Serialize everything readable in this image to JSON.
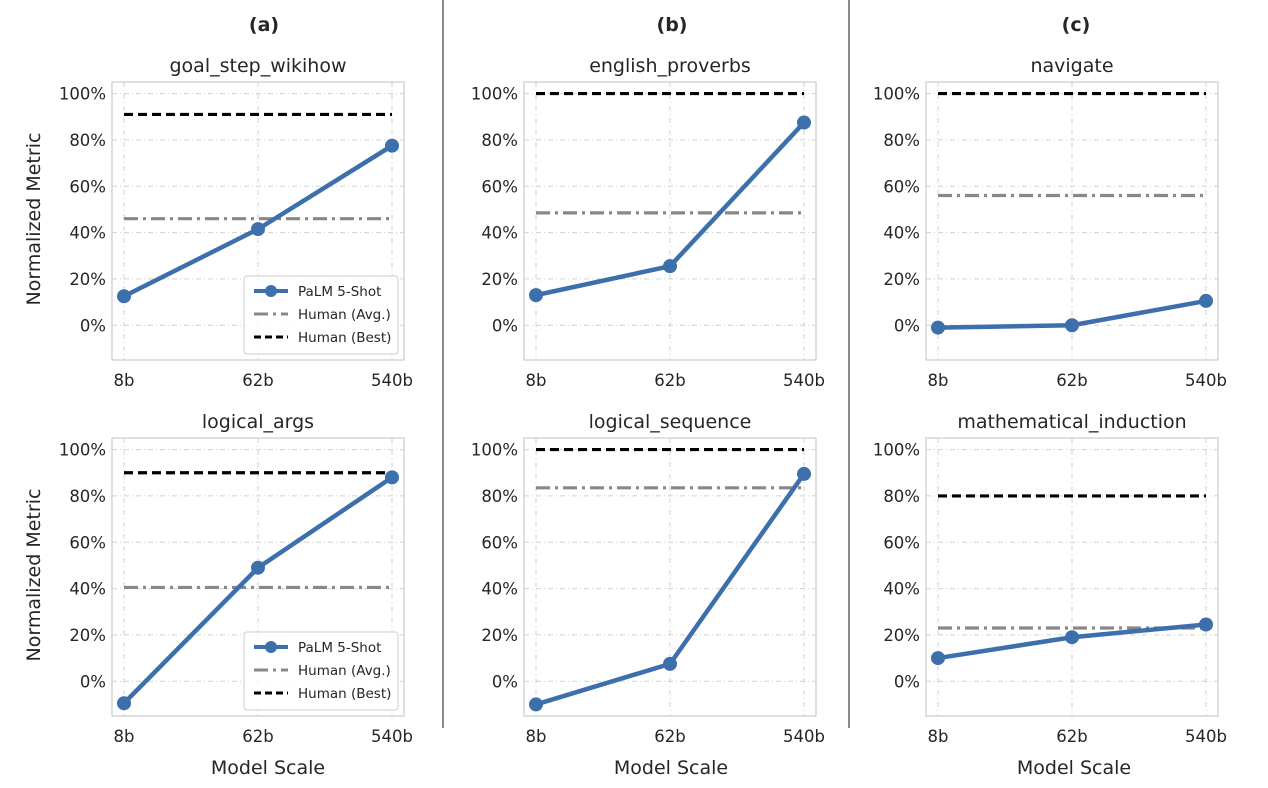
{
  "figure": {
    "column_labels": [
      "(a)",
      "(b)",
      "(c)"
    ],
    "ylabel": "Normalized Metric",
    "xlabel": "Model Scale",
    "colors": {
      "palm": "#3d6fac",
      "human_avg": "#888888",
      "human_best": "#000000",
      "grid": "#d0d0d0",
      "frame": "#cccccc"
    }
  },
  "chart_data": [
    {
      "type": "line",
      "title": "goal_step_wikihow",
      "categories": [
        "8b",
        "62b",
        "540b"
      ],
      "ylim": [
        -15,
        105
      ],
      "yticks": [
        "0%",
        "20%",
        "40%",
        "60%",
        "80%",
        "100%"
      ],
      "ytick_values": [
        0,
        20,
        40,
        60,
        80,
        100
      ],
      "grid": true,
      "legend": "bottom-right",
      "series": [
        {
          "name": "PaLM 5-Shot",
          "values": [
            12.5,
            41.5,
            77.5
          ],
          "style": "solid-marker"
        },
        {
          "name": "Human (Avg.)",
          "values": [
            46,
            46,
            46
          ],
          "style": "dashdot"
        },
        {
          "name": "Human (Best)",
          "values": [
            91,
            91,
            91
          ],
          "style": "dashed"
        }
      ]
    },
    {
      "type": "line",
      "title": "english_proverbs",
      "categories": [
        "8b",
        "62b",
        "540b"
      ],
      "ylim": [
        -15,
        105
      ],
      "yticks": [
        "0%",
        "20%",
        "40%",
        "60%",
        "80%",
        "100%"
      ],
      "ytick_values": [
        0,
        20,
        40,
        60,
        80,
        100
      ],
      "grid": true,
      "legend": "none",
      "series": [
        {
          "name": "PaLM 5-Shot",
          "values": [
            13,
            25.5,
            87.5
          ],
          "style": "solid-marker"
        },
        {
          "name": "Human (Avg.)",
          "values": [
            48.5,
            48.5,
            48.5
          ],
          "style": "dashdot"
        },
        {
          "name": "Human (Best)",
          "values": [
            100,
            100,
            100
          ],
          "style": "dashed"
        }
      ]
    },
    {
      "type": "line",
      "title": "navigate",
      "categories": [
        "8b",
        "62b",
        "540b"
      ],
      "ylim": [
        -15,
        105
      ],
      "yticks": [
        "0%",
        "20%",
        "40%",
        "60%",
        "80%",
        "100%"
      ],
      "ytick_values": [
        0,
        20,
        40,
        60,
        80,
        100
      ],
      "grid": true,
      "legend": "none",
      "series": [
        {
          "name": "PaLM 5-Shot",
          "values": [
            -1,
            0,
            10.5
          ],
          "style": "solid-marker"
        },
        {
          "name": "Human (Avg.)",
          "values": [
            56,
            56,
            56
          ],
          "style": "dashdot"
        },
        {
          "name": "Human (Best)",
          "values": [
            100,
            100,
            100
          ],
          "style": "dashed"
        }
      ]
    },
    {
      "type": "line",
      "title": "logical_args",
      "categories": [
        "8b",
        "62b",
        "540b"
      ],
      "ylim": [
        -15,
        105
      ],
      "yticks": [
        "0%",
        "20%",
        "40%",
        "60%",
        "80%",
        "100%"
      ],
      "ytick_values": [
        0,
        20,
        40,
        60,
        80,
        100
      ],
      "grid": true,
      "legend": "bottom-right",
      "series": [
        {
          "name": "PaLM 5-Shot",
          "values": [
            -9.5,
            49,
            88
          ],
          "style": "solid-marker"
        },
        {
          "name": "Human (Avg.)",
          "values": [
            40.5,
            40.5,
            40.5
          ],
          "style": "dashdot"
        },
        {
          "name": "Human (Best)",
          "values": [
            90,
            90,
            90
          ],
          "style": "dashed"
        }
      ]
    },
    {
      "type": "line",
      "title": "logical_sequence",
      "categories": [
        "8b",
        "62b",
        "540b"
      ],
      "ylim": [
        -15,
        105
      ],
      "yticks": [
        "0%",
        "20%",
        "40%",
        "60%",
        "80%",
        "100%"
      ],
      "ytick_values": [
        0,
        20,
        40,
        60,
        80,
        100
      ],
      "grid": true,
      "legend": "none",
      "series": [
        {
          "name": "PaLM 5-Shot",
          "values": [
            -10,
            7.5,
            89.5
          ],
          "style": "solid-marker"
        },
        {
          "name": "Human (Avg.)",
          "values": [
            83.5,
            83.5,
            83.5
          ],
          "style": "dashdot"
        },
        {
          "name": "Human (Best)",
          "values": [
            100,
            100,
            100
          ],
          "style": "dashed"
        }
      ]
    },
    {
      "type": "line",
      "title": "mathematical_induction",
      "categories": [
        "8b",
        "62b",
        "540b"
      ],
      "ylim": [
        -15,
        105
      ],
      "yticks": [
        "0%",
        "20%",
        "40%",
        "60%",
        "80%",
        "100%"
      ],
      "ytick_values": [
        0,
        20,
        40,
        60,
        80,
        100
      ],
      "grid": true,
      "legend": "none",
      "series": [
        {
          "name": "PaLM 5-Shot",
          "values": [
            10,
            19,
            24.5
          ],
          "style": "solid-marker"
        },
        {
          "name": "Human (Avg.)",
          "values": [
            23,
            23,
            23
          ],
          "style": "dashdot"
        },
        {
          "name": "Human (Best)",
          "values": [
            80,
            80,
            80
          ],
          "style": "dashed"
        }
      ]
    }
  ]
}
